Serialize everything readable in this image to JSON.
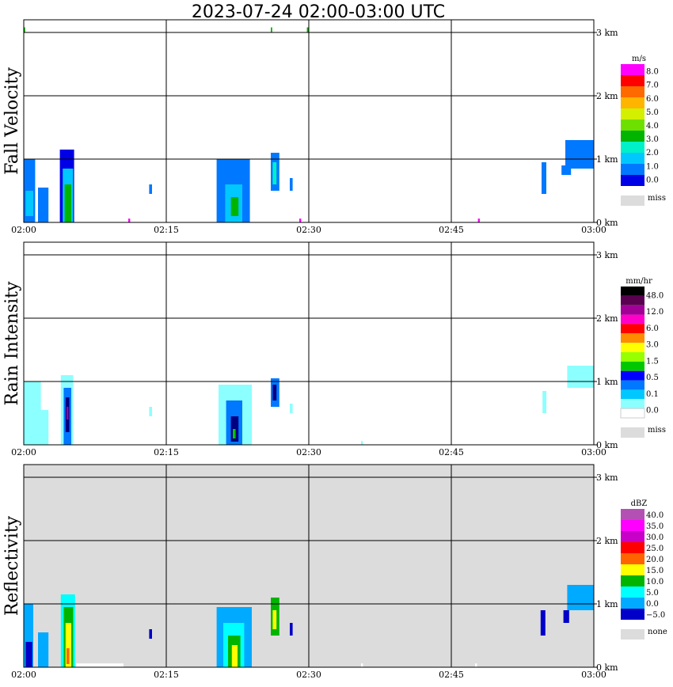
{
  "title": "2023-07-24   02:00-03:00 UTC",
  "chart_data": [
    {
      "type": "heatmap",
      "ylabel": "Fall Velocity",
      "xticks": [
        "02:00",
        "02:15",
        "02:30",
        "02:45",
        "03:00"
      ],
      "yticks": [
        "0 km",
        "1 km",
        "2 km",
        "3 km"
      ],
      "background": "#ffffff",
      "colorbar": {
        "unit": "m/s",
        "labels": [
          "8.0",
          "7.0",
          "6.0",
          "5.0",
          "4.0",
          "3.0",
          "2.0",
          "1.0",
          "0.0"
        ],
        "colors": [
          "#ff00ff",
          "#ff0000",
          "#ff6a00",
          "#ffb400",
          "#d2f000",
          "#6ee000",
          "#00b400",
          "#00f0c8",
          "#00c8ff",
          "#0078ff",
          "#0000e6"
        ],
        "miss_label": "miss",
        "miss_color": "#dcdcdc"
      },
      "echoes": [
        {
          "t0": 0.0,
          "t1": 1.2,
          "h0": 0.0,
          "h1": 1.0,
          "color": "#0078ff"
        },
        {
          "t0": 0.2,
          "t1": 1.0,
          "h0": 0.1,
          "h1": 0.5,
          "color": "#00c8ff"
        },
        {
          "t0": 1.5,
          "t1": 2.6,
          "h0": 0.0,
          "h1": 0.55,
          "color": "#0078ff"
        },
        {
          "t0": 3.8,
          "t1": 5.3,
          "h0": 0.0,
          "h1": 1.15,
          "color": "#0000e6"
        },
        {
          "t0": 4.1,
          "t1": 5.2,
          "h0": 0.0,
          "h1": 0.85,
          "color": "#00c8ff"
        },
        {
          "t0": 4.3,
          "t1": 5.0,
          "h0": 0.0,
          "h1": 0.6,
          "color": "#00b400"
        },
        {
          "t0": 13.2,
          "t1": 13.5,
          "h0": 0.45,
          "h1": 0.6,
          "color": "#0078ff"
        },
        {
          "t0": 20.3,
          "t1": 23.8,
          "h0": 0.0,
          "h1": 1.0,
          "color": "#0078ff"
        },
        {
          "t0": 21.2,
          "t1": 23.0,
          "h0": 0.0,
          "h1": 0.6,
          "color": "#00c8ff"
        },
        {
          "t0": 21.8,
          "t1": 22.6,
          "h0": 0.1,
          "h1": 0.4,
          "color": "#00b400"
        },
        {
          "t0": 26.0,
          "t1": 26.9,
          "h0": 0.5,
          "h1": 1.1,
          "color": "#0078ff"
        },
        {
          "t0": 26.2,
          "t1": 26.6,
          "h0": 0.6,
          "h1": 0.95,
          "color": "#00f0c8"
        },
        {
          "t0": 28.0,
          "t1": 28.3,
          "h0": 0.5,
          "h1": 0.7,
          "color": "#0078ff"
        },
        {
          "t0": 54.5,
          "t1": 55.0,
          "h0": 0.45,
          "h1": 0.95,
          "color": "#0078ff"
        },
        {
          "t0": 57.0,
          "t1": 60.0,
          "h0": 0.85,
          "h1": 1.3,
          "color": "#0078ff"
        },
        {
          "t0": 56.6,
          "t1": 57.6,
          "h0": 0.75,
          "h1": 0.9,
          "color": "#0078ff"
        },
        {
          "t0": 11.0,
          "t1": 11.2,
          "h0": 0.0,
          "h1": 0.06,
          "color": "#ff00ff"
        },
        {
          "t0": 29.0,
          "t1": 29.2,
          "h0": 0.0,
          "h1": 0.06,
          "color": "#ff00ff"
        },
        {
          "t0": 47.8,
          "t1": 48.0,
          "h0": 0.0,
          "h1": 0.06,
          "color": "#ff00ff"
        },
        {
          "t0": 0.0,
          "t1": 0.15,
          "h0": 3.0,
          "h1": 3.08,
          "color": "#00b400"
        },
        {
          "t0": 26.0,
          "t1": 26.15,
          "h0": 3.0,
          "h1": 3.08,
          "color": "#00b400"
        },
        {
          "t0": 29.8,
          "t1": 30.0,
          "h0": 3.0,
          "h1": 3.08,
          "color": "#00b400"
        }
      ]
    },
    {
      "type": "heatmap",
      "ylabel": "Rain Intensity",
      "xticks": [
        "02:00",
        "02:15",
        "02:30",
        "02:45",
        "03:00"
      ],
      "yticks": [
        "0 km",
        "1 km",
        "2 km",
        "3 km"
      ],
      "background": "#ffffff",
      "colorbar": {
        "unit": "mm/hr",
        "labels": [
          "48.0",
          "12.0",
          "6.0",
          "3.0",
          "1.5",
          "0.5",
          "0.1",
          "0.0"
        ],
        "colors": [
          "#000000",
          "#5a0050",
          "#a00096",
          "#ff00c8",
          "#ff0000",
          "#ff8c00",
          "#ffff00",
          "#96ff00",
          "#00c800",
          "#0000ff",
          "#0078ff",
          "#00c8ff",
          "#8cffff",
          "#ffffff"
        ],
        "miss_label": "miss",
        "miss_color": "#dcdcdc"
      },
      "echoes": [
        {
          "t0": 0.0,
          "t1": 1.8,
          "h0": 0.0,
          "h1": 1.0,
          "color": "#8cffff"
        },
        {
          "t0": 1.5,
          "t1": 2.6,
          "h0": 0.0,
          "h1": 0.55,
          "color": "#8cffff"
        },
        {
          "t0": 3.9,
          "t1": 5.2,
          "h0": 0.0,
          "h1": 1.1,
          "color": "#8cffff"
        },
        {
          "t0": 4.2,
          "t1": 5.0,
          "h0": 0.0,
          "h1": 0.9,
          "color": "#0078ff"
        },
        {
          "t0": 4.4,
          "t1": 4.8,
          "h0": 0.2,
          "h1": 0.75,
          "color": "#000080"
        },
        {
          "t0": 4.5,
          "t1": 4.7,
          "h0": 0.4,
          "h1": 0.6,
          "color": "#a00096"
        },
        {
          "t0": 13.2,
          "t1": 13.5,
          "h0": 0.45,
          "h1": 0.6,
          "color": "#8cffff"
        },
        {
          "t0": 20.5,
          "t1": 24.0,
          "h0": 0.0,
          "h1": 0.95,
          "color": "#8cffff"
        },
        {
          "t0": 21.3,
          "t1": 23.0,
          "h0": 0.0,
          "h1": 0.7,
          "color": "#0078ff"
        },
        {
          "t0": 21.8,
          "t1": 22.6,
          "h0": 0.05,
          "h1": 0.45,
          "color": "#000080"
        },
        {
          "t0": 22.0,
          "t1": 22.3,
          "h0": 0.1,
          "h1": 0.25,
          "color": "#00c800"
        },
        {
          "t0": 26.0,
          "t1": 26.9,
          "h0": 0.6,
          "h1": 1.05,
          "color": "#0078ff"
        },
        {
          "t0": 26.2,
          "t1": 26.6,
          "h0": 0.7,
          "h1": 0.95,
          "color": "#000080"
        },
        {
          "t0": 28.0,
          "t1": 28.3,
          "h0": 0.5,
          "h1": 0.65,
          "color": "#8cffff"
        },
        {
          "t0": 54.6,
          "t1": 55.0,
          "h0": 0.5,
          "h1": 0.85,
          "color": "#8cffff"
        },
        {
          "t0": 57.2,
          "t1": 60.0,
          "h0": 0.9,
          "h1": 1.25,
          "color": "#8cffff"
        },
        {
          "t0": 35.5,
          "t1": 35.7,
          "h0": 0.0,
          "h1": 0.06,
          "color": "#8cffff"
        }
      ]
    },
    {
      "type": "heatmap",
      "ylabel": "Reflectivity",
      "xticks": [
        "02:00",
        "02:15",
        "02:30",
        "02:45",
        "03:00"
      ],
      "yticks": [
        "0 km",
        "1 km",
        "2 km",
        "3 km"
      ],
      "background": "#dcdcdc",
      "colorbar": {
        "unit": "dBZ",
        "labels": [
          "40.0",
          "35.0",
          "30.0",
          "25.0",
          "20.0",
          "15.0",
          "10.0",
          "5.0",
          "0.0",
          "−5.0"
        ],
        "colors": [
          "#b450b4",
          "#ff00ff",
          "#c800c8",
          "#ff0000",
          "#ff6400",
          "#ffff00",
          "#00b400",
          "#00ffff",
          "#00aaff",
          "#0000c8"
        ],
        "miss_label": "none",
        "miss_color": "#dcdcdc"
      },
      "echoes": [
        {
          "t0": 0.0,
          "t1": 1.0,
          "h0": 0.0,
          "h1": 1.0,
          "color": "#00aaff"
        },
        {
          "t0": 0.2,
          "t1": 0.9,
          "h0": 0.0,
          "h1": 0.4,
          "color": "#0000c8"
        },
        {
          "t0": 1.5,
          "t1": 2.6,
          "h0": 0.0,
          "h1": 0.55,
          "color": "#00aaff"
        },
        {
          "t0": 3.9,
          "t1": 5.4,
          "h0": 0.0,
          "h1": 1.15,
          "color": "#00ffff"
        },
        {
          "t0": 4.2,
          "t1": 5.2,
          "h0": 0.0,
          "h1": 0.95,
          "color": "#00b400"
        },
        {
          "t0": 4.4,
          "t1": 5.0,
          "h0": 0.0,
          "h1": 0.7,
          "color": "#ffff00"
        },
        {
          "t0": 4.5,
          "t1": 4.8,
          "h0": 0.05,
          "h1": 0.3,
          "color": "#ff6400"
        },
        {
          "t0": 13.2,
          "t1": 13.5,
          "h0": 0.45,
          "h1": 0.6,
          "color": "#0000c8"
        },
        {
          "t0": 20.3,
          "t1": 24.0,
          "h0": 0.0,
          "h1": 0.95,
          "color": "#00aaff"
        },
        {
          "t0": 21.0,
          "t1": 23.2,
          "h0": 0.0,
          "h1": 0.7,
          "color": "#00ffff"
        },
        {
          "t0": 21.5,
          "t1": 22.8,
          "h0": 0.0,
          "h1": 0.5,
          "color": "#00b400"
        },
        {
          "t0": 21.9,
          "t1": 22.5,
          "h0": 0.0,
          "h1": 0.35,
          "color": "#ffff00"
        },
        {
          "t0": 26.0,
          "t1": 26.9,
          "h0": 0.5,
          "h1": 1.1,
          "color": "#00b400"
        },
        {
          "t0": 26.2,
          "t1": 26.6,
          "h0": 0.6,
          "h1": 0.9,
          "color": "#ffff00"
        },
        {
          "t0": 28.0,
          "t1": 28.3,
          "h0": 0.5,
          "h1": 0.7,
          "color": "#0000c8"
        },
        {
          "t0": 54.4,
          "t1": 54.9,
          "h0": 0.5,
          "h1": 0.9,
          "color": "#0000c8"
        },
        {
          "t0": 57.2,
          "t1": 60.0,
          "h0": 0.9,
          "h1": 1.3,
          "color": "#00aaff"
        },
        {
          "t0": 56.8,
          "t1": 57.4,
          "h0": 0.7,
          "h1": 0.9,
          "color": "#0000c8"
        },
        {
          "t0": 5.5,
          "t1": 10.5,
          "h0": 0.0,
          "h1": 0.06,
          "color": "#ffffff"
        },
        {
          "t0": 35.5,
          "t1": 35.7,
          "h0": 0.0,
          "h1": 0.06,
          "color": "#ffffff"
        },
        {
          "t0": 47.5,
          "t1": 47.7,
          "h0": 0.0,
          "h1": 0.06,
          "color": "#ffffff"
        }
      ]
    }
  ]
}
